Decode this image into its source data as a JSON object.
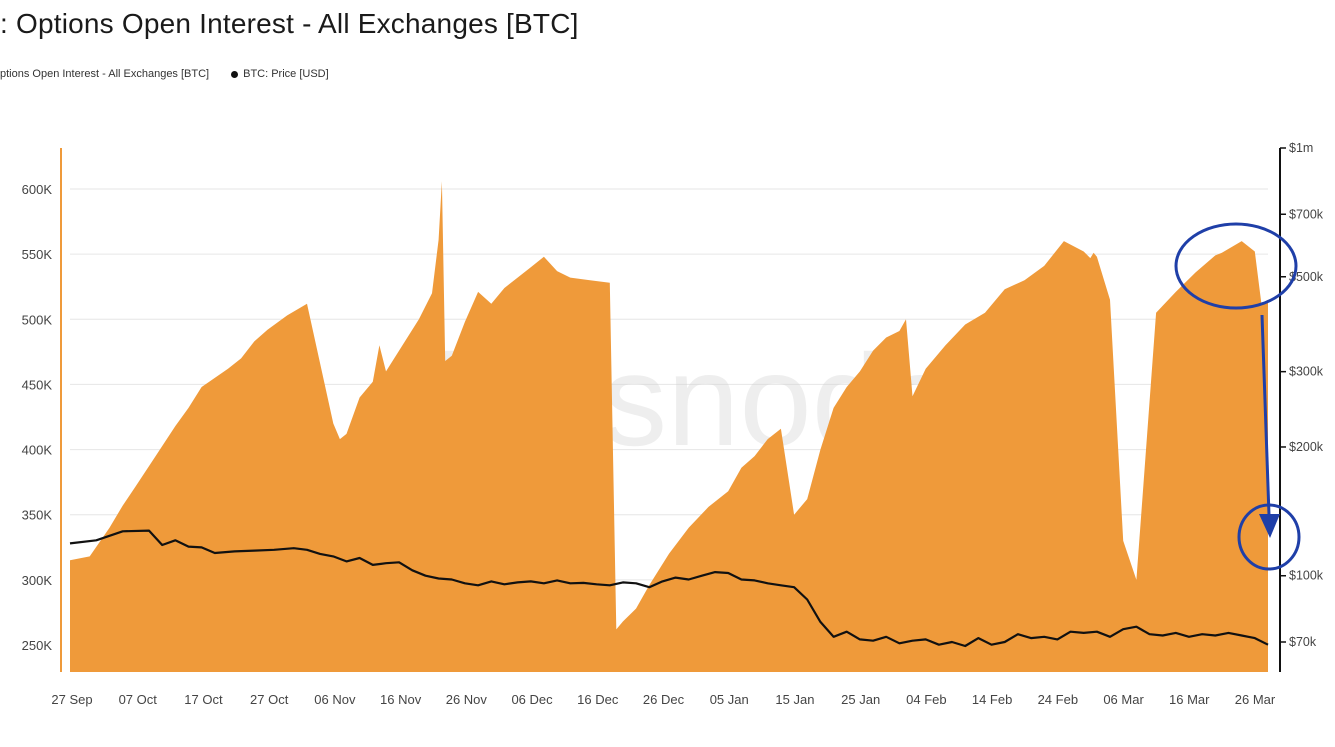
{
  "title": ": Options Open Interest - All Exchanges [BTC]",
  "legend": [
    {
      "label": "ptions Open Interest - All Exchanges [BTC]",
      "color": "#ef9a3a"
    },
    {
      "label": "BTC: Price [USD]",
      "color": "#111111"
    }
  ],
  "watermark": "glassnode",
  "chart_data": {
    "type": "area",
    "title": ": Options Open Interest - All Exchanges [BTC]",
    "legend_position": "top-left",
    "grid": true,
    "xlabel": "",
    "x_tick_labels": [
      "27 Sep",
      "07 Oct",
      "17 Oct",
      "27 Oct",
      "06 Nov",
      "16 Nov",
      "26 Nov",
      "06 Dec",
      "16 Dec",
      "26 Dec",
      "05 Jan",
      "15 Jan",
      "25 Jan",
      "04 Feb",
      "14 Feb",
      "24 Feb",
      "06 Mar",
      "16 Mar",
      "26 Mar"
    ],
    "y_left": {
      "label": "",
      "ticks": [
        250000,
        300000,
        350000,
        400000,
        450000,
        500000,
        550000,
        600000
      ],
      "tick_labels": [
        "250K",
        "300K",
        "350K",
        "400K",
        "450K",
        "500K",
        "550K",
        "600K"
      ],
      "range": [
        230000,
        630000
      ]
    },
    "y_right": {
      "label": "",
      "scale": "log",
      "ticks": [
        70000,
        100000,
        200000,
        300000,
        500000,
        700000,
        1000000
      ],
      "tick_labels": [
        "$70k",
        "$100k",
        "$200k",
        "$300k",
        "$500k",
        "$700k",
        "$1m"
      ]
    },
    "series": [
      {
        "name": "ptions Open Interest - All Exchanges [BTC]",
        "axis": "left",
        "color": "#ef9a3a",
        "x_day": [
          0,
          3,
          6,
          8,
          10,
          13,
          16,
          18,
          20,
          22,
          24,
          26,
          28,
          30,
          33,
          36,
          40,
          41,
          42,
          44,
          46,
          47,
          48,
          50,
          53,
          55,
          56,
          56.5,
          57,
          58,
          60,
          62,
          64,
          66,
          68,
          70,
          72,
          74,
          76,
          79,
          82,
          83,
          84,
          86,
          88,
          91,
          94,
          97,
          100,
          102,
          104,
          106,
          108,
          110,
          112,
          114,
          116,
          118,
          120,
          122,
          124,
          126,
          127,
          128,
          130,
          133,
          136,
          139,
          142,
          145,
          148,
          151,
          154,
          155,
          155.5,
          156,
          158,
          160,
          162,
          165,
          168,
          171,
          174,
          175,
          176,
          178,
          180,
          181,
          182
        ],
        "values": [
          315000,
          318000,
          340000,
          357000,
          372000,
          395000,
          418000,
          432000,
          448000,
          455000,
          462000,
          470000,
          483000,
          492000,
          503000,
          512000,
          420000,
          408000,
          412000,
          440000,
          452000,
          480000,
          460000,
          476000,
          500000,
          520000,
          561000,
          606000,
          468000,
          472000,
          498000,
          521000,
          512000,
          524000,
          532000,
          540000,
          548000,
          537000,
          532000,
          530000,
          528000,
          262000,
          268000,
          278000,
          296000,
          320000,
          340000,
          356000,
          368000,
          386000,
          395000,
          408000,
          416000,
          350000,
          362000,
          400000,
          432000,
          448000,
          460000,
          476000,
          486000,
          491000,
          500000,
          441000,
          462000,
          480000,
          496000,
          505000,
          523000,
          530000,
          541000,
          560000,
          552000,
          547000,
          551000,
          548000,
          515000,
          330000,
          300000,
          505000,
          521000,
          536000,
          549000,
          551000,
          554000,
          560000,
          552000,
          512000,
          515000
        ]
      },
      {
        "name": "BTC: Price [USD]",
        "axis": "right",
        "color": "#111111",
        "x_day": [
          0,
          4,
          8,
          12,
          14,
          16,
          18,
          20,
          22,
          25,
          28,
          31,
          34,
          36,
          38,
          40,
          42,
          44,
          46,
          48,
          50,
          52,
          54,
          56,
          58,
          60,
          62,
          64,
          66,
          68,
          70,
          72,
          74,
          76,
          78,
          80,
          82,
          84,
          86,
          88,
          90,
          92,
          94,
          96,
          98,
          100,
          102,
          104,
          106,
          108,
          110,
          112,
          114,
          116,
          118,
          120,
          122,
          124,
          126,
          128,
          130,
          132,
          134,
          136,
          138,
          140,
          142,
          144,
          146,
          148,
          150,
          152,
          154,
          156,
          158,
          160,
          162,
          164,
          166,
          168,
          170,
          172,
          174,
          176,
          178,
          180,
          182
        ],
        "values": [
          119000,
          121000,
          127000,
          127500,
          118000,
          121000,
          117000,
          116500,
          113000,
          114000,
          114500,
          115000,
          116000,
          115000,
          112500,
          111000,
          108000,
          110000,
          106000,
          107000,
          107500,
          103000,
          100000,
          98500,
          98000,
          96000,
          95000,
          97000,
          95500,
          96500,
          97000,
          96000,
          97500,
          96000,
          96200,
          95500,
          95000,
          96500,
          96000,
          94000,
          97000,
          99000,
          98000,
          100000,
          102000,
          101500,
          98000,
          97500,
          96000,
          95000,
          94000,
          88000,
          78000,
          72000,
          74000,
          71000,
          70500,
          72000,
          69500,
          70500,
          71000,
          69000,
          70000,
          68500,
          71500,
          69000,
          70000,
          73000,
          71500,
          72000,
          71000,
          74000,
          73500,
          74000,
          72000,
          75000,
          76000,
          73000,
          72500,
          73500,
          72000,
          73000,
          72500,
          73500,
          72500,
          71500,
          69000
        ]
      }
    ]
  }
}
